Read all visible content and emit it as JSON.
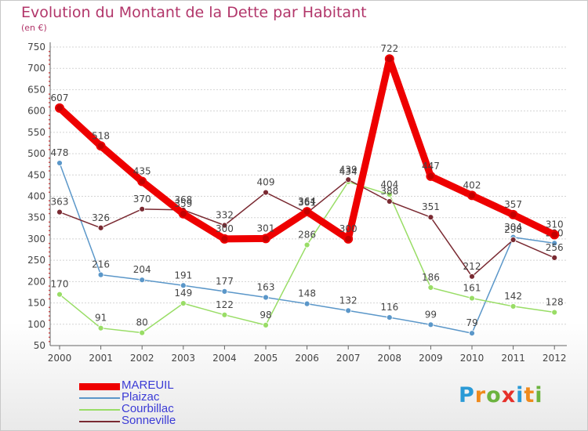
{
  "title": "Evolution du Montant de la Dette par Habitant",
  "unit_label": "(en €)",
  "brand": {
    "text": "Proxiti",
    "letters": [
      "P",
      "r",
      "o",
      "x",
      "i",
      "t",
      "i"
    ],
    "colors": [
      "#2a9ad6",
      "#ef8a1c",
      "#6cb33f",
      "#e6302a",
      "#2a9ad6",
      "#ef8a1c",
      "#6cb33f"
    ]
  },
  "chart_data": {
    "type": "line",
    "title": "Evolution du Montant de la Dette par Habitant",
    "ylabel": "(en €)",
    "xlabel": "",
    "x": [
      "2000",
      "2001",
      "2002",
      "2003",
      "2004",
      "2005",
      "2006",
      "2007",
      "2008",
      "2009",
      "2010",
      "2011",
      "2012"
    ],
    "ylim": [
      50,
      750
    ],
    "yticks": [
      50,
      100,
      150,
      200,
      250,
      300,
      350,
      400,
      450,
      500,
      550,
      600,
      650,
      700,
      750
    ],
    "grid": "horizontal",
    "legend_position": "bottom-left",
    "series": [
      {
        "name": "MAREUIL",
        "color": "#ee0000",
        "values": [
          607,
          518,
          435,
          359,
          300,
          301,
          364,
          300,
          722,
          447,
          402,
          357,
          310
        ],
        "labels": [
          "607",
          "518",
          "435",
          "359",
          "300",
          "301",
          "364",
          "300",
          "722",
          "447",
          "402",
          "357",
          "310"
        ]
      },
      {
        "name": "Plaizac",
        "color": "#5b97c9",
        "values": [
          478,
          216,
          204,
          191,
          177,
          163,
          148,
          132,
          116,
          99,
          79,
          304,
          290
        ],
        "labels": [
          "478",
          "216",
          "204",
          "191",
          "177",
          "163",
          "148",
          "132",
          "116",
          "99",
          "79",
          "304",
          "290"
        ]
      },
      {
        "name": "Courbillac",
        "color": "#99dd66",
        "values": [
          170,
          91,
          80,
          149,
          122,
          98,
          286,
          434,
          404,
          186,
          161,
          142,
          128
        ],
        "labels": [
          "170",
          "91",
          "80",
          "149",
          "122",
          "98",
          "286",
          "434",
          "404",
          "186",
          "161",
          "142",
          "128"
        ]
      },
      {
        "name": "Sonneville",
        "color": "#7a2a32",
        "values": [
          363,
          326,
          370,
          368,
          332,
          409,
          361,
          439,
          388,
          351,
          212,
          298,
          256
        ],
        "labels": [
          "363",
          "326",
          "370",
          "368",
          "332",
          "409",
          "361",
          "439",
          "388",
          "351",
          "212",
          "298",
          "256"
        ]
      }
    ]
  }
}
